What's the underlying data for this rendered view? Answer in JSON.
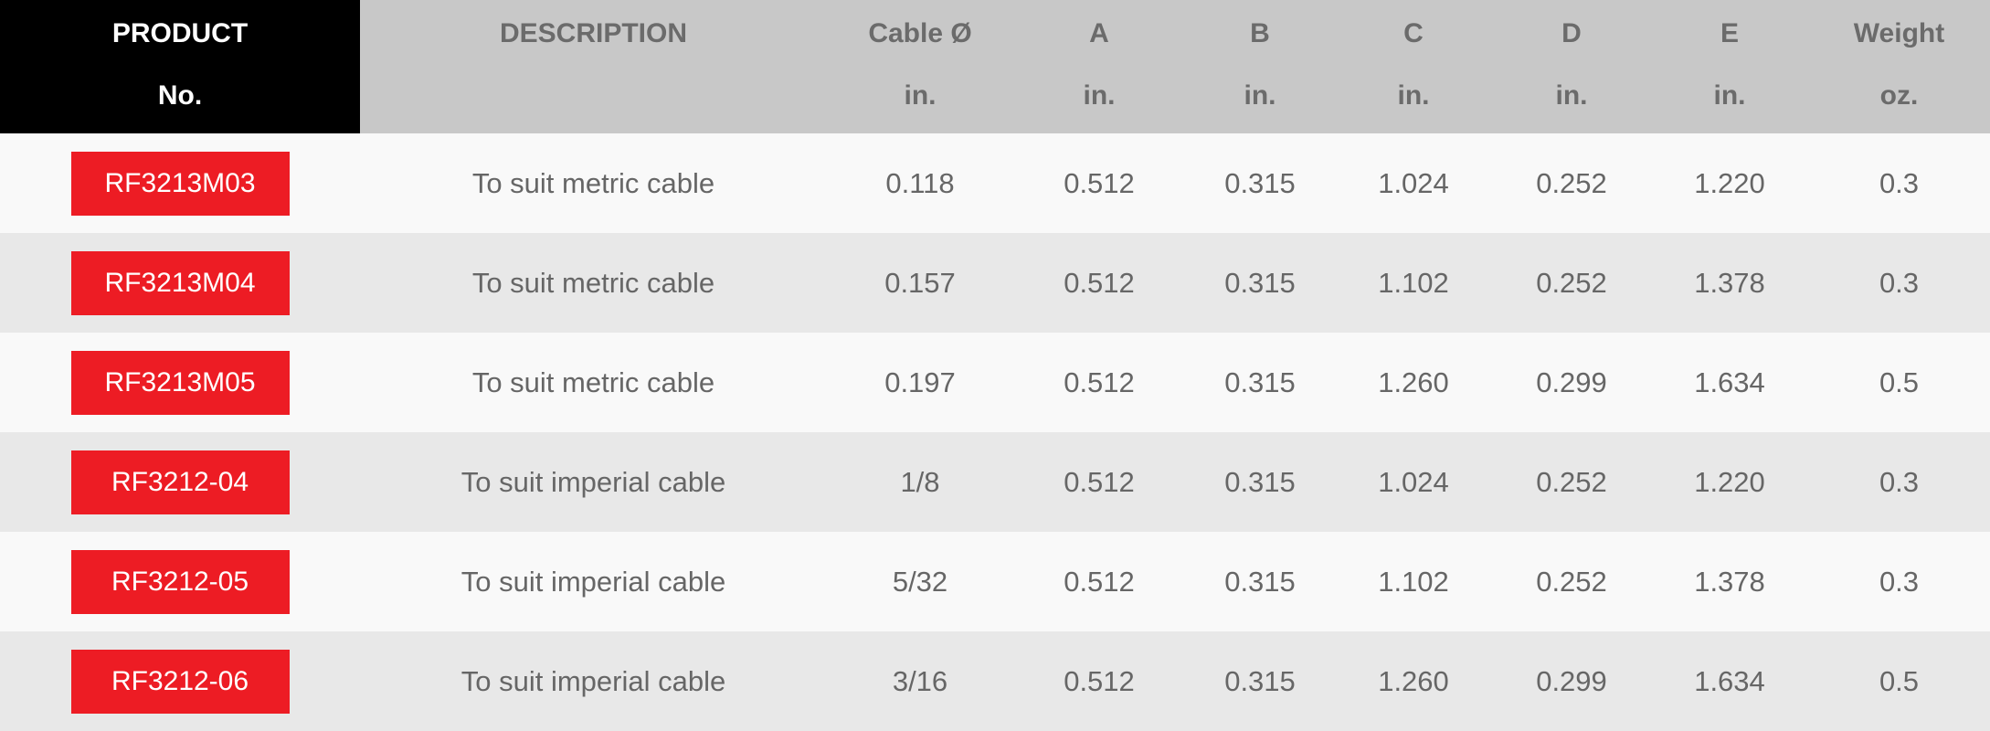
{
  "table": {
    "header": [
      [
        "PRODUCT",
        "No."
      ],
      [
        "DESCRIPTION"
      ],
      [
        "Cable Ø",
        "in."
      ],
      [
        "A",
        "in."
      ],
      [
        "B",
        "in."
      ],
      [
        "C",
        "in."
      ],
      [
        "D",
        "in."
      ],
      [
        "E",
        "in."
      ],
      [
        "Weight",
        "oz."
      ]
    ],
    "rows": [
      [
        "RF3213M03",
        "To suit metric cable",
        "0.118",
        "0.512",
        "0.315",
        "1.024",
        "0.252",
        "1.220",
        "0.3"
      ],
      [
        "RF3213M04",
        "To suit metric cable",
        "0.157",
        "0.512",
        "0.315",
        "1.102",
        "0.252",
        "1.378",
        "0.3"
      ],
      [
        "RF3213M05",
        "To suit metric cable",
        "0.197",
        "0.512",
        "0.315",
        "1.260",
        "0.299",
        "1.634",
        "0.5"
      ],
      [
        "RF3212-04",
        "To suit imperial cable",
        "1/8",
        "0.512",
        "0.315",
        "1.024",
        "0.252",
        "1.220",
        "0.3"
      ],
      [
        "RF3212-05",
        "To suit imperial cable",
        "5/32",
        "0.512",
        "0.315",
        "1.102",
        "0.252",
        "1.378",
        "0.3"
      ],
      [
        "RF3212-06",
        "To suit imperial cable",
        "3/16",
        "0.512",
        "0.315",
        "1.260",
        "0.299",
        "1.634",
        "0.5"
      ]
    ]
  }
}
